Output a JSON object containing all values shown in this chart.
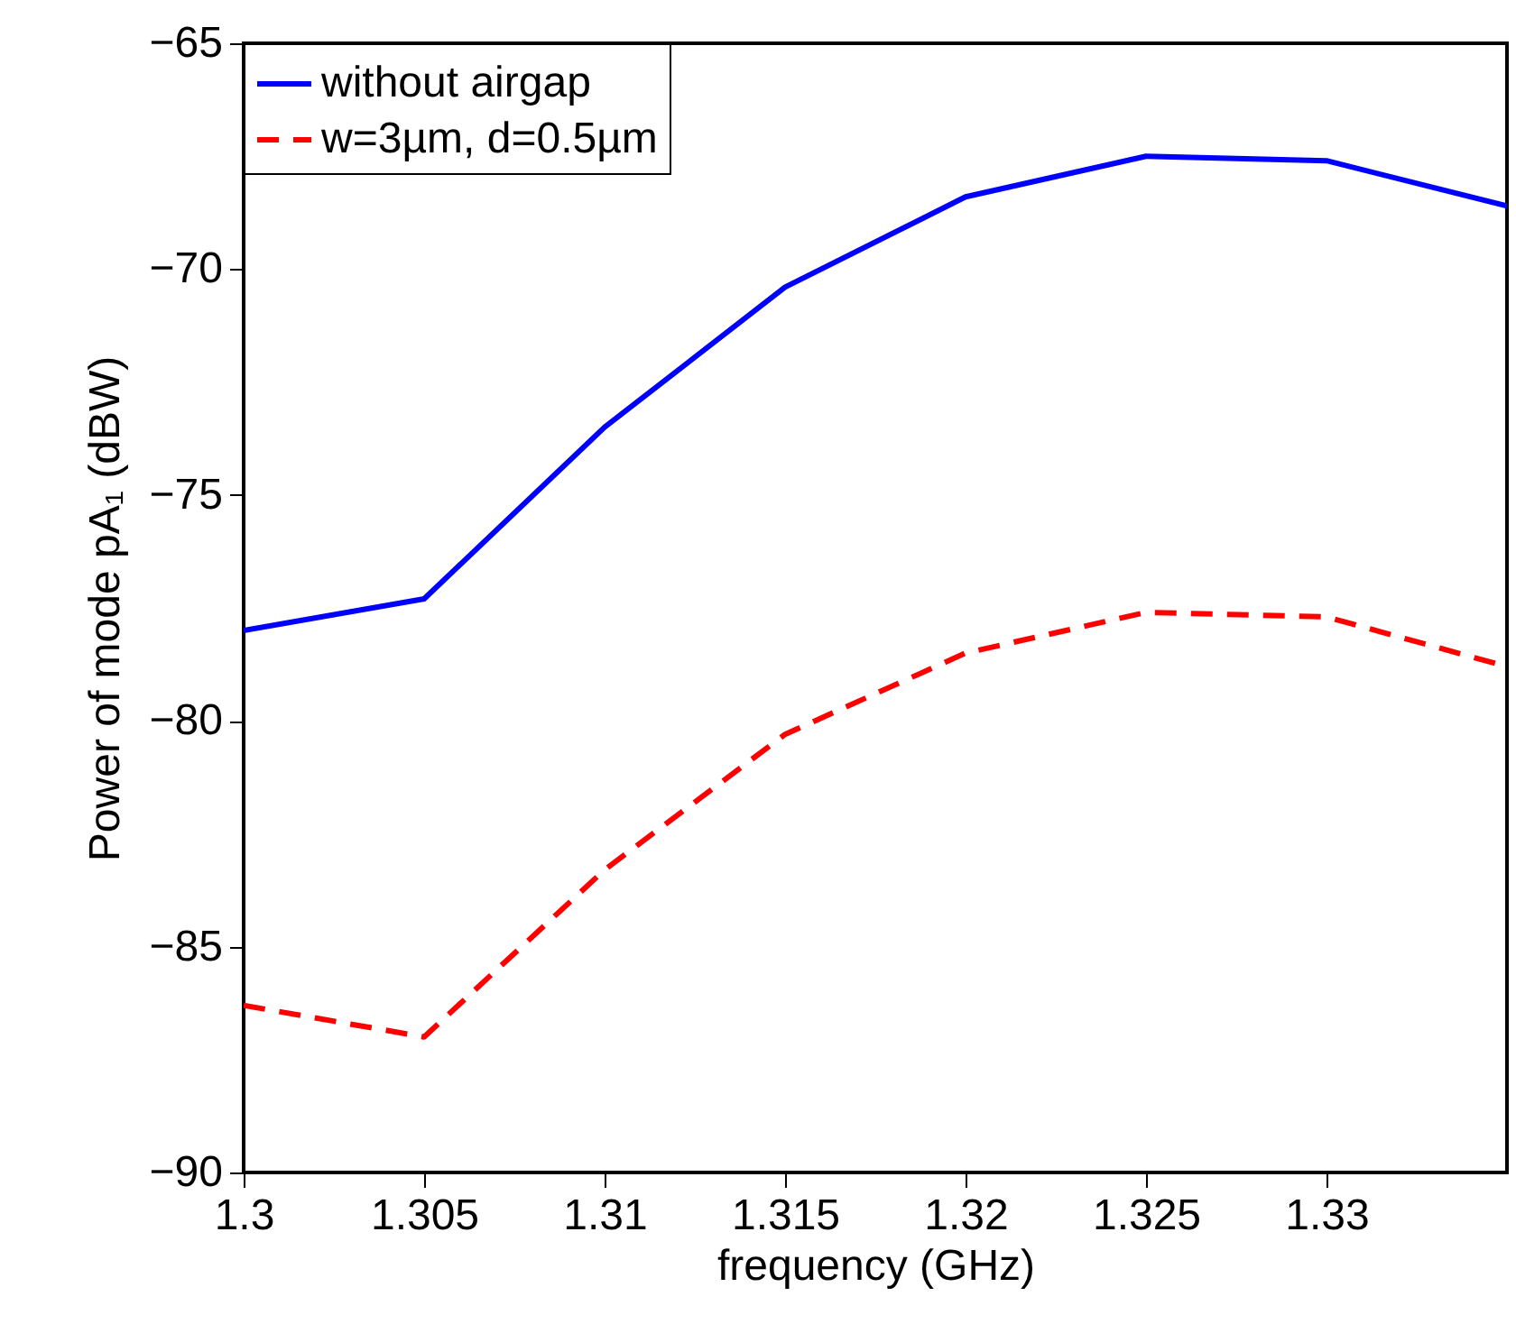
{
  "chart_data": {
    "type": "line",
    "xlabel": "frequency (GHz)",
    "ylabel": "Power of mode pA₁ (dBW)",
    "x": [
      1.3,
      1.305,
      1.31,
      1.315,
      1.32,
      1.325,
      1.33,
      1.335
    ],
    "series": [
      {
        "name": "without airgap",
        "color": "#0000ff",
        "line_style": "solid",
        "values": [
          -78.0,
          -77.3,
          -73.5,
          -70.4,
          -68.4,
          -67.5,
          -67.6,
          -68.6
        ]
      },
      {
        "name": "w=3µm, d=0.5µm",
        "color": "#ff0000",
        "line_style": "dashed",
        "values": [
          -86.3,
          -87.0,
          -83.3,
          -80.3,
          -78.5,
          -77.6,
          -77.7,
          -78.8
        ]
      }
    ],
    "xlim": [
      1.3,
      1.335
    ],
    "xticks": [
      1.3,
      1.305,
      1.31,
      1.315,
      1.32,
      1.325,
      1.33
    ],
    "ylim": [
      -90,
      -65
    ],
    "yticks": [
      -90,
      -85,
      -80,
      -75,
      -70,
      -65
    ],
    "grid": false,
    "legend": "top left",
    "marker": "none"
  }
}
